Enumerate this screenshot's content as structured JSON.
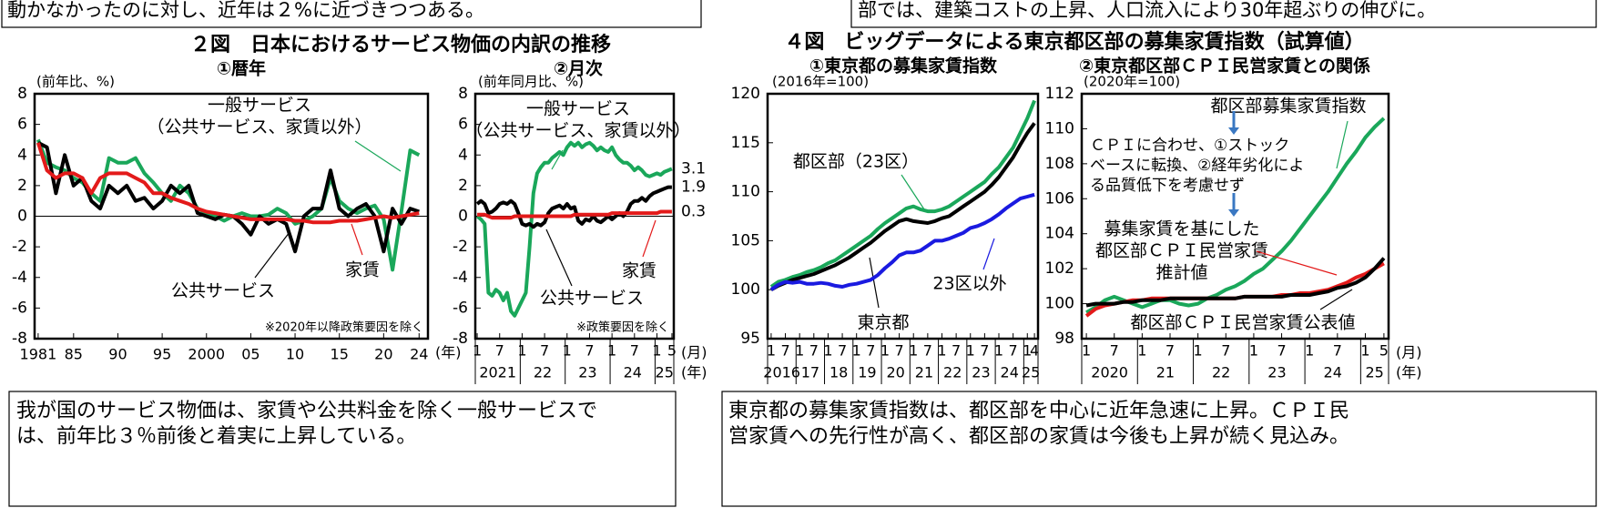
{
  "header_notes": [
    "動かなかったのに対し、近年は２%に近づきつつある。",
    "部では、建築コストの上昇、人口流入により30年超ぶりの伸びに。"
  ],
  "figure_titles": [
    "２図　日本におけるサービス物価の内訳の推移",
    "４図　ビッグデータによる東京都区部の募集家賃指数（試算値）"
  ],
  "captions": [
    [
      "我が国のサービス物価は、家賃や公共料金を除く一般サービスで",
      "は、前年比３％前後と着実に上昇している。"
    ],
    [
      "東京都の募集家賃指数は、都区部を中心に近年急速に上昇。ＣＰＩ民",
      "営家賃への先行性が高く、都区部の家賃は今後も上昇が続く見込み。"
    ]
  ],
  "chart_data": [
    {
      "type": "line",
      "title": "①暦年",
      "y_label": "(前年比、%)",
      "note": "※2020年以降政策要因を除く",
      "x_unit": [
        "(年)"
      ],
      "zero_line": true,
      "x": [
        1981,
        1982,
        1983,
        1984,
        1985,
        1986,
        1987,
        1988,
        1989,
        1990,
        1991,
        1992,
        1993,
        1994,
        1995,
        1996,
        1997,
        1998,
        1999,
        2000,
        2001,
        2002,
        2003,
        2004,
        2005,
        2006,
        2007,
        2008,
        2009,
        2010,
        2011,
        2012,
        2013,
        2014,
        2015,
        2016,
        2017,
        2018,
        2019,
        2020,
        2021,
        2022,
        2023,
        2024
      ],
      "xlim": [
        1980.6,
        2025
      ],
      "xticks": [
        1981,
        {
          "value": 1985,
          "label": "85"
        },
        {
          "value": 1990,
          "label": "90"
        },
        {
          "value": 1995,
          "label": "95"
        },
        2000,
        {
          "value": 2005,
          "label": "05"
        },
        {
          "value": 2010,
          "label": "10"
        },
        {
          "value": 2015,
          "label": "15"
        },
        {
          "value": 2020,
          "label": "20"
        },
        {
          "value": 2024,
          "label": "24"
        }
      ],
      "ylim": [
        -8,
        8
      ],
      "yticks": [
        -8,
        -6,
        -4,
        -2,
        0,
        2,
        4,
        6,
        8
      ],
      "series": [
        {
          "name": [
            "一般サービス",
            "（公共サービス、家賃以外）"
          ],
          "color": "#1aa75a",
          "values": [
            5.0,
            3.5,
            3.2,
            3.0,
            2.5,
            2.2,
            1.5,
            1.0,
            3.8,
            3.5,
            3.5,
            3.8,
            2.8,
            2.2,
            1.5,
            1.0,
            2.0,
            1.5,
            0.5,
            0.2,
            0.0,
            -0.3,
            0.0,
            0.2,
            0.0,
            0.0,
            0.1,
            0.5,
            0.2,
            -0.5,
            -0.3,
            0.0,
            0.5,
            2.5,
            1.0,
            0.5,
            0.2,
            0.5,
            0.7,
            -0.2,
            -3.5,
            0.3,
            4.3,
            4.0
          ]
        },
        {
          "name": [
            "公共サービス"
          ],
          "color": "#000000",
          "values": [
            4.8,
            4.5,
            1.5,
            4.0,
            2.0,
            2.5,
            1.0,
            0.5,
            2.0,
            1.5,
            2.0,
            1.0,
            1.2,
            0.5,
            1.0,
            2.0,
            1.5,
            2.0,
            0.2,
            0.0,
            -0.2,
            0.1,
            0.0,
            -0.5,
            -1.2,
            0.0,
            -0.5,
            -0.2,
            -0.5,
            -2.3,
            0.0,
            0.5,
            0.5,
            3.0,
            0.5,
            0.0,
            0.5,
            0.8,
            0.0,
            -2.3,
            0.5,
            -0.5,
            0.5,
            0.3
          ]
        },
        {
          "name": [
            "家賃"
          ],
          "color": "#e31a1a",
          "values": [
            4.8,
            3.0,
            2.5,
            2.8,
            2.8,
            2.5,
            1.5,
            2.5,
            2.8,
            2.8,
            2.8,
            2.5,
            2.2,
            1.5,
            1.5,
            1.2,
            1.0,
            0.8,
            0.5,
            0.3,
            0.2,
            0.1,
            0.0,
            -0.1,
            -0.2,
            -0.2,
            -0.2,
            -0.2,
            -0.2,
            -0.3,
            -0.3,
            -0.4,
            -0.4,
            -0.4,
            -0.3,
            -0.3,
            -0.3,
            -0.2,
            -0.1,
            0.0,
            -0.1,
            0.0,
            0.1,
            0.2
          ]
        }
      ]
    },
    {
      "type": "line",
      "title": "②月次",
      "y_label": "(前年同月比、%)",
      "note": "※政策要因を除く",
      "x_unit": [
        "(月)",
        "(年)"
      ],
      "zero_line": true,
      "end_labels": true,
      "categories": [
        "1",
        null,
        null,
        null,
        null,
        null,
        "7",
        null,
        null,
        null,
        null,
        null,
        "1",
        null,
        null,
        null,
        null,
        null,
        "7",
        null,
        null,
        null,
        null,
        null,
        "1",
        null,
        null,
        null,
        null,
        null,
        "7",
        null,
        null,
        null,
        null,
        null,
        "1",
        null,
        null,
        null,
        null,
        null,
        "7",
        null,
        null,
        null,
        null,
        null,
        "1",
        null,
        null,
        null,
        "5"
      ],
      "x_groups": [
        "2021",
        "22",
        "23",
        "24",
        "25"
      ],
      "ylim": [
        -8,
        8
      ],
      "yticks": [
        -8,
        -6,
        -4,
        -2,
        0,
        2,
        4,
        6,
        8
      ],
      "series": [
        {
          "name": [
            "一般サービス",
            "（公共サービス、家賃以外）"
          ],
          "color": "#1aa75a",
          "values": [
            0.0,
            -0.2,
            -0.5,
            -5.0,
            -5.2,
            -4.8,
            -5.0,
            -5.5,
            -5.0,
            -6.2,
            -6.5,
            -6.0,
            -5.5,
            -5.0,
            -2.0,
            1.5,
            2.8,
            3.2,
            3.5,
            3.5,
            3.8,
            4.0,
            4.2,
            4.0,
            4.5,
            4.8,
            4.6,
            4.8,
            4.5,
            4.7,
            4.8,
            4.6,
            4.3,
            4.5,
            4.3,
            4.2,
            4.5,
            4.0,
            3.7,
            3.5,
            3.5,
            3.3,
            3.0,
            3.2,
            3.0,
            2.7,
            2.6,
            2.7,
            2.8,
            2.7,
            2.9,
            3.0,
            3.1
          ]
        },
        {
          "name": [
            "公共サービス"
          ],
          "color": "#000000",
          "values": [
            0.8,
            1.0,
            0.8,
            0.2,
            0.3,
            0.5,
            0.8,
            0.9,
            0.8,
            1.0,
            0.8,
            0.2,
            -0.5,
            -0.6,
            -0.5,
            -0.7,
            -0.5,
            -0.6,
            -0.4,
            0.2,
            0.5,
            0.6,
            0.7,
            0.5,
            0.8,
            0.5,
            0.6,
            -0.3,
            -0.5,
            -0.2,
            -0.3,
            0.0,
            -0.3,
            -0.4,
            -0.2,
            0.0,
            -0.2,
            0.0,
            0.2,
            0.0,
            0.3,
            0.8,
            1.0,
            1.0,
            1.2,
            1.0,
            1.3,
            1.5,
            1.6,
            1.7,
            1.8,
            1.9,
            1.9
          ]
        },
        {
          "name": [
            "家賃"
          ],
          "color": "#e31a1a",
          "values": [
            0.1,
            0.1,
            0.1,
            0.0,
            -0.1,
            -0.1,
            -0.1,
            -0.1,
            -0.1,
            -0.1,
            0.0,
            0.0,
            0.0,
            0.0,
            0.0,
            0.0,
            0.0,
            0.0,
            0.0,
            0.0,
            0.0,
            0.0,
            0.0,
            0.0,
            0.0,
            0.0,
            0.1,
            0.1,
            0.1,
            0.1,
            0.1,
            0.1,
            0.1,
            0.1,
            0.1,
            0.1,
            0.2,
            0.2,
            0.2,
            0.2,
            0.2,
            0.2,
            0.2,
            0.2,
            0.2,
            0.2,
            0.2,
            0.2,
            0.2,
            0.3,
            0.3,
            0.3,
            0.3
          ]
        }
      ]
    },
    {
      "type": "line",
      "title": "①東京都の募集家賃指数",
      "y_label": "(2016年=100)",
      "x_unit": [],
      "categories": [
        "1",
        null,
        "7",
        null,
        "1",
        null,
        "7",
        null,
        "1",
        null,
        "7",
        null,
        "1",
        null,
        "7",
        null,
        "1",
        null,
        "7",
        null,
        "1",
        null,
        "7",
        null,
        "1",
        null,
        "7",
        null,
        "1",
        null,
        "7",
        null,
        "1",
        null,
        "7",
        null,
        "1",
        "4"
      ],
      "x_groups": [
        "2016",
        "17",
        "18",
        "19",
        "20",
        "21",
        "22",
        "23",
        "24",
        "25"
      ],
      "ylim": [
        95,
        120
      ],
      "yticks": [
        95,
        100,
        105,
        110,
        115,
        120
      ],
      "series": [
        {
          "name": [
            "都区部（23区）"
          ],
          "color": "#1aa75a",
          "values": [
            100.3,
            100.8,
            101.0,
            101.3,
            101.5,
            101.8,
            102.0,
            102.3,
            102.7,
            103.0,
            103.5,
            104.0,
            104.5,
            105.0,
            105.5,
            106.2,
            106.8,
            107.3,
            107.8,
            108.3,
            108.5,
            108.2,
            108.0,
            108.0,
            108.2,
            108.5,
            109.0,
            109.5,
            110.0,
            110.5,
            111.0,
            111.8,
            112.5,
            113.5,
            114.5,
            116.0,
            117.5,
            119.3
          ]
        },
        {
          "name": [
            "東京都"
          ],
          "color": "#000000",
          "values": [
            100.0,
            100.4,
            100.7,
            101.0,
            101.2,
            101.4,
            101.6,
            101.9,
            102.2,
            102.5,
            102.9,
            103.3,
            103.8,
            104.3,
            104.8,
            105.4,
            106.0,
            106.5,
            107.0,
            107.2,
            107.0,
            106.9,
            106.8,
            107.0,
            107.3,
            107.5,
            108.0,
            108.5,
            109.0,
            109.5,
            110.0,
            110.7,
            111.5,
            112.5,
            113.5,
            114.8,
            116.0,
            117.0
          ]
        },
        {
          "name": [
            "23区以外"
          ],
          "color": "#1a1ae0",
          "values": [
            100.0,
            100.5,
            100.8,
            100.7,
            100.8,
            100.6,
            100.6,
            100.7,
            100.6,
            100.4,
            100.3,
            100.5,
            100.6,
            100.8,
            101.0,
            101.5,
            102.2,
            102.8,
            103.5,
            103.8,
            103.8,
            104.0,
            104.5,
            105.0,
            105.0,
            105.2,
            105.5,
            105.8,
            106.3,
            106.5,
            106.8,
            107.2,
            107.7,
            108.3,
            108.8,
            109.3,
            109.5,
            109.7
          ]
        }
      ]
    },
    {
      "type": "line",
      "title": "②東京都区部ＣＰＩ民営家賃との関係",
      "y_label": "(2020年=100)",
      "x_unit": [
        "(月)",
        "(年)"
      ],
      "annotation": [
        "ＣＰＩに合わせ、①ストック",
        "ベースに転換、②経年劣化によ",
        "る品質低下を考慮せず"
      ],
      "categories": [
        "1",
        null,
        null,
        "7",
        null,
        null,
        "1",
        null,
        null,
        "7",
        null,
        null,
        "1",
        null,
        null,
        "7",
        null,
        null,
        "1",
        null,
        null,
        "7",
        null,
        null,
        "1",
        null,
        null,
        "7",
        null,
        null,
        "1",
        null,
        "5"
      ],
      "x_groups": [
        "2020",
        "21",
        "22",
        "23",
        "24",
        "25"
      ],
      "ylim": [
        98,
        112
      ],
      "yticks": [
        98,
        100,
        102,
        104,
        106,
        108,
        110,
        112
      ],
      "series": [
        {
          "name": [
            "都区部募集家賃指数"
          ],
          "color": "#1aa75a",
          "values": [
            99.5,
            99.8,
            100.2,
            100.4,
            100.2,
            100.0,
            99.8,
            100.0,
            100.2,
            100.2,
            100.0,
            99.9,
            100.0,
            100.3,
            100.5,
            100.8,
            101.0,
            101.3,
            101.7,
            102.0,
            102.5,
            103.0,
            103.6,
            104.3,
            105.0,
            105.7,
            106.4,
            107.2,
            108.0,
            108.7,
            109.5,
            110.1,
            110.6
          ]
        },
        {
          "name": [
            "募集家賃を基にした",
            "都区部ＣＰＩ民営家賃",
            "推計値"
          ],
          "color": "#e31a1a",
          "values": [
            99.3,
            99.7,
            99.9,
            100.0,
            100.1,
            100.2,
            100.2,
            100.3,
            100.3,
            100.3,
            100.3,
            100.3,
            100.3,
            100.3,
            100.3,
            100.3,
            100.3,
            100.4,
            100.4,
            100.4,
            100.4,
            100.5,
            100.5,
            100.6,
            100.6,
            100.7,
            100.8,
            101.0,
            101.2,
            101.5,
            101.7,
            102.0,
            102.3
          ]
        },
        {
          "name": [
            "都区部ＣＰＩ民営家賃公表値"
          ],
          "color": "#000000",
          "values": [
            99.9,
            100.0,
            100.0,
            100.0,
            100.1,
            100.1,
            100.2,
            100.2,
            100.2,
            100.3,
            100.3,
            100.3,
            100.3,
            100.3,
            100.3,
            100.3,
            100.3,
            100.4,
            100.4,
            100.4,
            100.4,
            100.4,
            100.5,
            100.5,
            100.5,
            100.6,
            100.7,
            100.9,
            101.0,
            101.2,
            101.5,
            102.0,
            102.6
          ]
        }
      ]
    }
  ]
}
